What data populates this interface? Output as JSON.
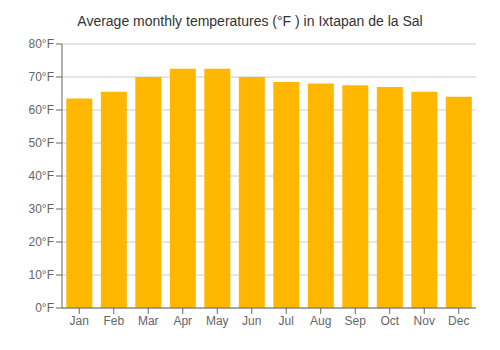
{
  "chart_data": {
    "type": "bar",
    "title": "Average monthly temperatures (°F ) in Ixtapan de la Sal",
    "categories": [
      "Jan",
      "Feb",
      "Mar",
      "Apr",
      "May",
      "Jun",
      "Jul",
      "Aug",
      "Sep",
      "Oct",
      "Nov",
      "Dec"
    ],
    "values": [
      63.5,
      65.5,
      70.0,
      72.5,
      72.5,
      70.0,
      68.5,
      68.0,
      67.5,
      67.0,
      65.5,
      64.0
    ],
    "color": "#FFB700",
    "ylim": [
      0,
      80
    ],
    "yticks": [
      {
        "value": 0,
        "label": "0°F"
      },
      {
        "value": 10,
        "label": "10°F"
      },
      {
        "value": 20,
        "label": "20°F"
      },
      {
        "value": 30,
        "label": "30°F"
      },
      {
        "value": 40,
        "label": "40°F"
      },
      {
        "value": 50,
        "label": "50°F"
      },
      {
        "value": 60,
        "label": "60°F"
      },
      {
        "value": 70,
        "label": "70°F"
      },
      {
        "value": 80,
        "label": "80°F"
      }
    ],
    "grid": true
  }
}
